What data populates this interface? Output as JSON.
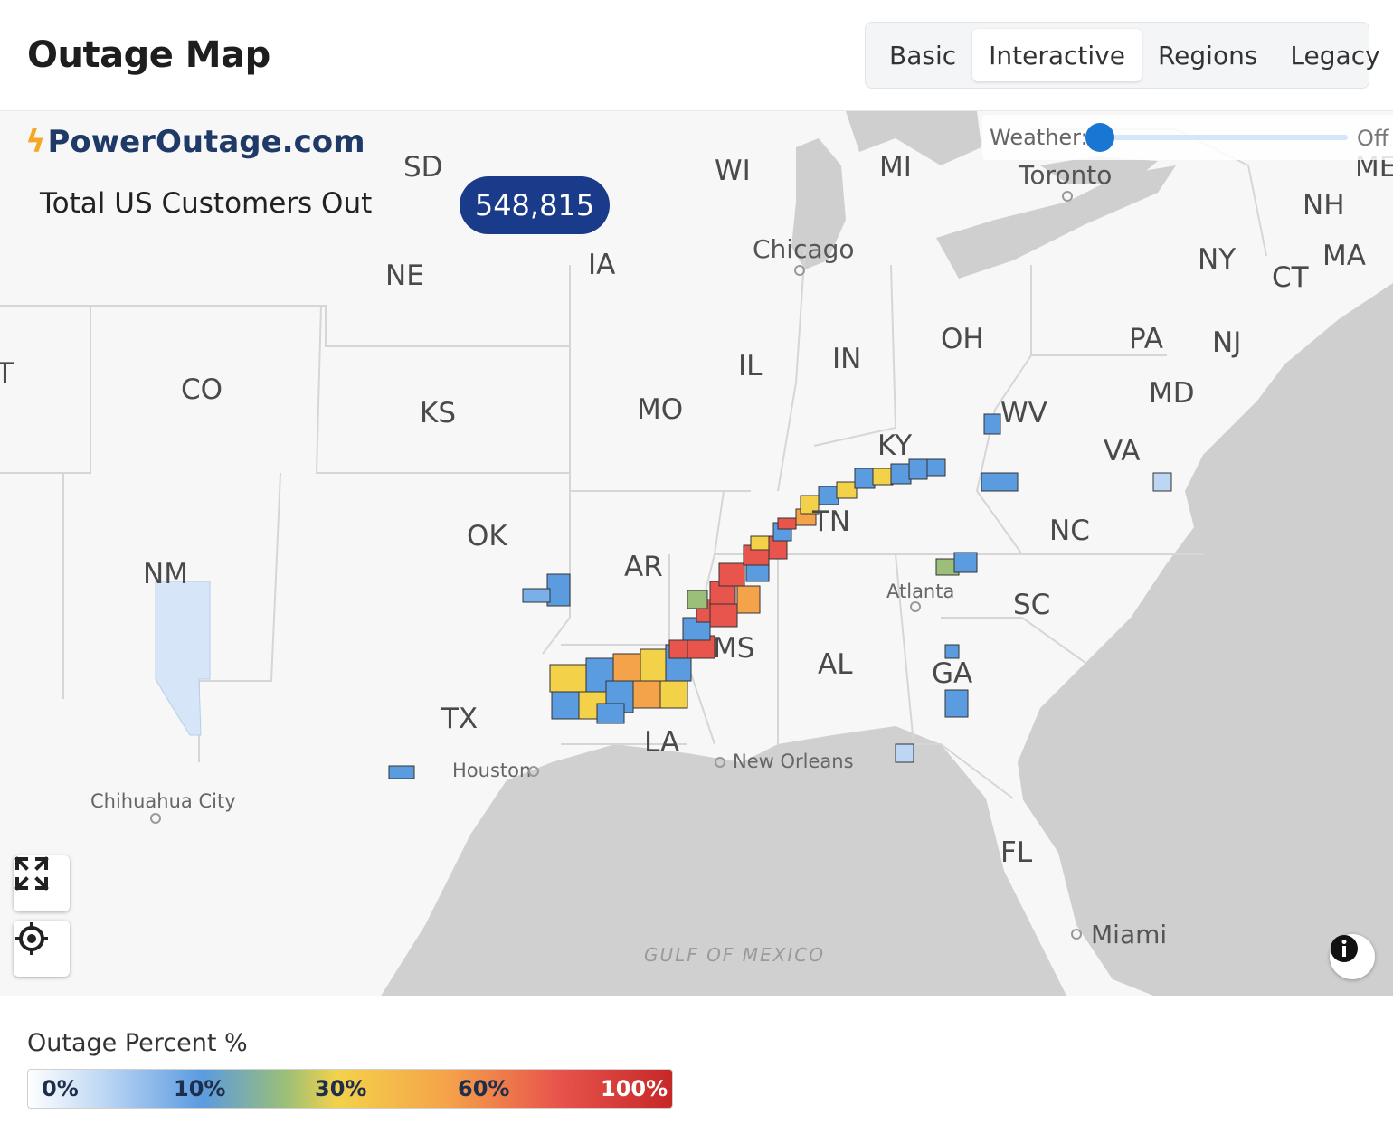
{
  "header": {
    "title": "Outage Map",
    "tabs": [
      {
        "label": "Basic",
        "active": false
      },
      {
        "label": "Interactive",
        "active": true
      },
      {
        "label": "Regions",
        "active": false
      },
      {
        "label": "Legacy",
        "active": false
      }
    ]
  },
  "map": {
    "brand": "PowerOutage.com",
    "total_label": "Total US Customers Out",
    "total_value": "548,815",
    "weather": {
      "label": "Weather:",
      "state": "Off"
    },
    "state_labels": [
      "SD",
      "WI",
      "MI",
      "ME",
      "NH",
      "MA",
      "NY",
      "CT",
      "IA",
      "NE",
      "PA",
      "NJ",
      "OH",
      "IN",
      "IL",
      "MD",
      "CO",
      "KS",
      "MO",
      "WV",
      "KY",
      "VA",
      "T",
      "TN",
      "NC",
      "OK",
      "AR",
      "NM",
      "SC",
      "MS",
      "AL",
      "GA",
      "TX",
      "LA",
      "FL"
    ],
    "city_labels": [
      "Toronto",
      "Chicago",
      "Atlanta",
      "Houston",
      "New Orleans",
      "Chihuahua City",
      "Miami"
    ],
    "water_label": "GULF OF MEXICO",
    "controls": [
      "fullscreen-icon",
      "locate-icon",
      "info-icon"
    ]
  },
  "legend": {
    "title": "Outage Percent %",
    "ticks": [
      "0%",
      "10%",
      "30%",
      "60%",
      "100%"
    ],
    "colors": [
      "#ffffff",
      "#5b9be0",
      "#f3d24a",
      "#f5a34a",
      "#c62828"
    ]
  },
  "colors": {
    "brand_pill": "#1a3a8a",
    "brand_text": "#1f3a66",
    "accent": "#1976d2"
  }
}
